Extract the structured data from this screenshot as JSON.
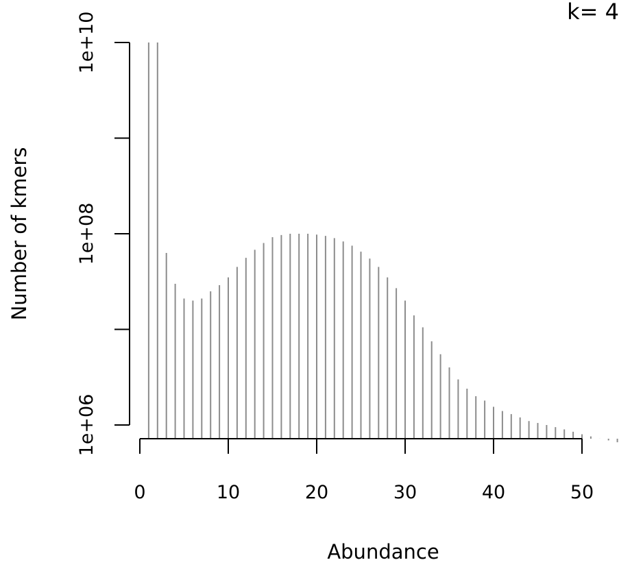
{
  "chart_data": {
    "type": "bar",
    "title": "",
    "corner_label": "k= 4",
    "xlabel": "Abundance",
    "ylabel": "Number of kmers",
    "x_scale": "linear",
    "y_scale": "log10",
    "xlim": [
      0,
      54
    ],
    "ylim": [
      1000000,
      10000000000
    ],
    "x_ticks": [
      0,
      10,
      20,
      30,
      40,
      50
    ],
    "x_tick_labels": [
      "0",
      "10",
      "20",
      "30",
      "40",
      "50"
    ],
    "y_ticks": [
      1000000,
      10000000,
      100000000,
      1000000000,
      10000000000
    ],
    "y_tick_labels": [
      "1e+06",
      "",
      "1e+08",
      "",
      "1e+10"
    ],
    "grid": false,
    "legend": "none",
    "bar_style": "vertical lines",
    "colors": {
      "bars": "#8c8c8c",
      "axes": "#000000"
    },
    "series": [
      {
        "x": [
          1,
          2,
          3,
          4,
          5,
          6,
          7,
          8,
          9,
          10,
          11,
          12,
          13,
          14,
          15,
          16,
          17,
          18,
          19,
          20,
          21,
          22,
          23,
          24,
          25,
          26,
          27,
          28,
          29,
          30,
          31,
          32,
          33,
          34,
          35,
          36,
          37,
          38,
          39,
          40,
          41,
          42,
          43,
          44,
          45,
          46,
          47,
          48,
          49,
          50,
          51,
          52,
          53,
          54
        ],
        "values": [
          10000000000,
          10000000000,
          63000000,
          30000000,
          21000000,
          20000000,
          21000000,
          25000000,
          29000000,
          35000000,
          45000000,
          56000000,
          68000000,
          80000000,
          92000000,
          97000000,
          100000000,
          100000000,
          100000000,
          98000000,
          95000000,
          90000000,
          83000000,
          75000000,
          65000000,
          55000000,
          45000000,
          35000000,
          27000000,
          20000000,
          14000000,
          10500000,
          7500000,
          5500000,
          4000000,
          3000000,
          2400000,
          2000000,
          1800000,
          1550000,
          1400000,
          1300000,
          1200000,
          1100000,
          1050000,
          1000000,
          950000,
          900000,
          850000,
          800000,
          760000,
          720000,
          690000,
          660000
        ]
      }
    ]
  }
}
